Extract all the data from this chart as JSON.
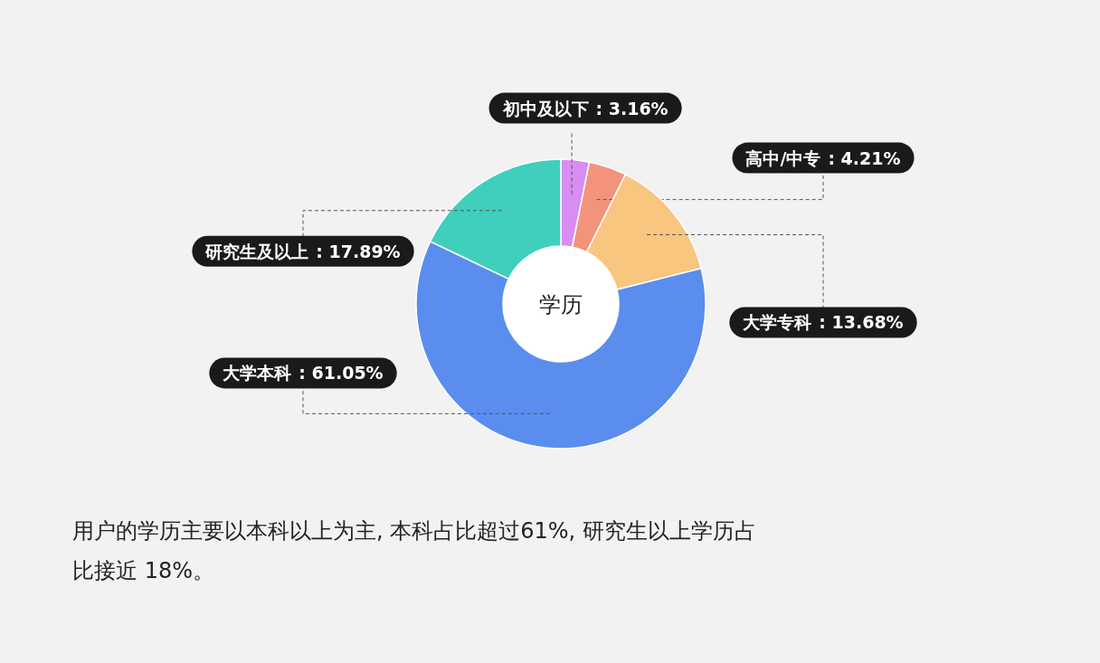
{
  "chart_data": {
    "type": "donut",
    "title": "学历",
    "categories": [
      "初中及以下",
      "高中/中专",
      "大学专科",
      "大学本科",
      "研究生及以上"
    ],
    "values": [
      3.16,
      4.21,
      13.68,
      61.05,
      17.89
    ],
    "colors": [
      "#d98cf2",
      "#f4937c",
      "#f8c67f",
      "#5b8def",
      "#40cfbd"
    ],
    "value_labels": [
      ": 3.16%",
      ": 4.21%",
      ": 13.68%",
      ": 61.05%",
      ": 17.89%"
    ],
    "annotations": [
      "用户的学历主要以本科以上为主, 本科占比超过61%, 研究生以上学历占比接近 18%。"
    ]
  }
}
